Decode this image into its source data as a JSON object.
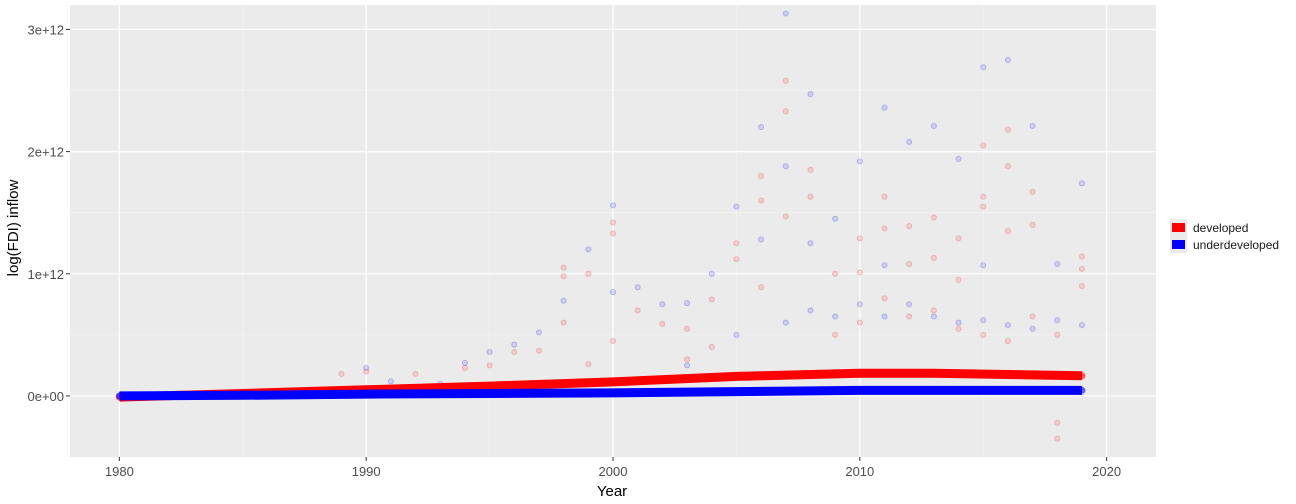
{
  "chart_data": {
    "type": "scatter",
    "title": "",
    "xlabel": "Year",
    "ylabel": "log(FDI) inflow",
    "xlim": [
      1978,
      2022
    ],
    "ylim": [
      -500000000000.0,
      3200000000000.0
    ],
    "x_ticks": [
      1980,
      1990,
      2000,
      2010,
      2020
    ],
    "x_tick_labels": [
      "1980",
      "1990",
      "2000",
      "2010",
      "2020"
    ],
    "y_ticks": [
      0,
      1000000000000.0,
      2000000000000.0,
      3000000000000.0
    ],
    "y_tick_labels": [
      "0e+00",
      "1e+12",
      "2e+12",
      "3e+12"
    ],
    "grid": true,
    "legend": {
      "placement": "right"
    },
    "colors": {
      "developed": "#ff0000",
      "underdeveloped": "#0000ff",
      "panel": "#ebebeb",
      "grid": "#ffffff"
    },
    "series": [
      {
        "name": "developed",
        "color": "#ff0000",
        "trend": {
          "x": [
            1980,
            1985,
            1990,
            1995,
            2000,
            2005,
            2010,
            2013,
            2016,
            2019
          ],
          "y": [
            -10000000000.0,
            20000000000.0,
            50000000000.0,
            80000000000.0,
            115000000000.0,
            160000000000.0,
            185000000000.0,
            185000000000.0,
            175000000000.0,
            165000000000.0
          ]
        },
        "points": [
          [
            1998,
            1050000000000.0
          ],
          [
            1998,
            980000000000.0
          ],
          [
            1998,
            600000000000.0
          ],
          [
            1999,
            1000000000000.0
          ],
          [
            2000,
            1420000000000.0
          ],
          [
            2000,
            1330000000000.0
          ],
          [
            2000,
            450000000000.0
          ],
          [
            2001,
            700000000000.0
          ],
          [
            2002,
            590000000000.0
          ],
          [
            2003,
            550000000000.0
          ],
          [
            2004,
            790000000000.0
          ],
          [
            2005,
            1250000000000.0
          ],
          [
            2005,
            1120000000000.0
          ],
          [
            2006,
            1800000000000.0
          ],
          [
            2006,
            1600000000000.0
          ],
          [
            2006,
            890000000000.0
          ],
          [
            2007,
            2580000000000.0
          ],
          [
            2007,
            2330000000000.0
          ],
          [
            2007,
            1470000000000.0
          ],
          [
            2008,
            1850000000000.0
          ],
          [
            2008,
            1630000000000.0
          ],
          [
            2009,
            1000000000000.0
          ],
          [
            2010,
            1290000000000.0
          ],
          [
            2010,
            1010000000000.0
          ],
          [
            2011,
            1630000000000.0
          ],
          [
            2011,
            1370000000000.0
          ],
          [
            2012,
            1390000000000.0
          ],
          [
            2012,
            1080000000000.0
          ],
          [
            2013,
            1460000000000.0
          ],
          [
            2013,
            1130000000000.0
          ],
          [
            2014,
            1290000000000.0
          ],
          [
            2014,
            950000000000.0
          ],
          [
            2015,
            2050000000000.0
          ],
          [
            2015,
            1630000000000.0
          ],
          [
            2015,
            1550000000000.0
          ],
          [
            2016,
            2180000000000.0
          ],
          [
            2016,
            1880000000000.0
          ],
          [
            2016,
            1350000000000.0
          ],
          [
            2017,
            1670000000000.0
          ],
          [
            2017,
            1400000000000.0
          ],
          [
            2018,
            -350000000000.0
          ],
          [
            2018,
            -220000000000.0
          ],
          [
            2019,
            1140000000000.0
          ],
          [
            2019,
            1040000000000.0
          ],
          [
            2019,
            900000000000.0
          ],
          [
            1996,
            360000000000.0
          ],
          [
            1997,
            370000000000.0
          ],
          [
            1999,
            260000000000.0
          ],
          [
            2003,
            300000000000.0
          ],
          [
            2004,
            400000000000.0
          ],
          [
            2009,
            500000000000.0
          ],
          [
            2010,
            600000000000.0
          ],
          [
            2011,
            800000000000.0
          ],
          [
            2012,
            650000000000.0
          ],
          [
            2013,
            700000000000.0
          ],
          [
            2014,
            550000000000.0
          ],
          [
            2015,
            500000000000.0
          ],
          [
            2016,
            450000000000.0
          ],
          [
            2017,
            650000000000.0
          ],
          [
            2018,
            500000000000.0
          ],
          [
            1990,
            200000000000.0
          ],
          [
            1992,
            180000000000.0
          ],
          [
            1994,
            230000000000.0
          ],
          [
            1995,
            250000000000.0
          ],
          [
            1989,
            180000000000.0
          ]
        ]
      },
      {
        "name": "underdeveloped",
        "color": "#0000ff",
        "trend": {
          "x": [
            1980,
            1985,
            1990,
            1995,
            2000,
            2005,
            2010,
            2015,
            2019
          ],
          "y": [
            0,
            5000000000.0,
            15000000000.0,
            20000000000.0,
            25000000000.0,
            35000000000.0,
            45000000000.0,
            45000000000.0,
            45000000000.0
          ]
        },
        "points": [
          [
            1999,
            1200000000000.0
          ],
          [
            2000,
            1560000000000.0
          ],
          [
            2000,
            850000000000.0
          ],
          [
            2001,
            890000000000.0
          ],
          [
            2003,
            760000000000.0
          ],
          [
            2004,
            1000000000000.0
          ],
          [
            2005,
            1550000000000.0
          ],
          [
            2006,
            2200000000000.0
          ],
          [
            2006,
            1280000000000.0
          ],
          [
            2007,
            3130000000000.0
          ],
          [
            2007,
            1880000000000.0
          ],
          [
            2008,
            2470000000000.0
          ],
          [
            2008,
            1250000000000.0
          ],
          [
            2009,
            1450000000000.0
          ],
          [
            2010,
            1920000000000.0
          ],
          [
            2011,
            2360000000000.0
          ],
          [
            2011,
            1070000000000.0
          ],
          [
            2012,
            2080000000000.0
          ],
          [
            2013,
            2210000000000.0
          ],
          [
            2014,
            1940000000000.0
          ],
          [
            2015,
            2690000000000.0
          ],
          [
            2015,
            1070000000000.0
          ],
          [
            2016,
            2750000000000.0
          ],
          [
            2017,
            2210000000000.0
          ],
          [
            2018,
            1080000000000.0
          ],
          [
            2019,
            1740000000000.0
          ],
          [
            1998,
            780000000000.0
          ],
          [
            1997,
            520000000000.0
          ],
          [
            1996,
            420000000000.0
          ],
          [
            1995,
            360000000000.0
          ],
          [
            1994,
            270000000000.0
          ],
          [
            2002,
            750000000000.0
          ],
          [
            2005,
            500000000000.0
          ],
          [
            2007,
            600000000000.0
          ],
          [
            2008,
            700000000000.0
          ],
          [
            2009,
            650000000000.0
          ],
          [
            2010,
            750000000000.0
          ],
          [
            2011,
            650000000000.0
          ],
          [
            2012,
            750000000000.0
          ],
          [
            2013,
            650000000000.0
          ],
          [
            2014,
            600000000000.0
          ],
          [
            2015,
            620000000000.0
          ],
          [
            2016,
            580000000000.0
          ],
          [
            2017,
            550000000000.0
          ],
          [
            2018,
            620000000000.0
          ],
          [
            2019,
            580000000000.0
          ],
          [
            1990,
            230000000000.0
          ],
          [
            1991,
            120000000000.0
          ],
          [
            1993,
            100000000000.0
          ],
          [
            2003,
            250000000000.0
          ]
        ]
      }
    ]
  }
}
